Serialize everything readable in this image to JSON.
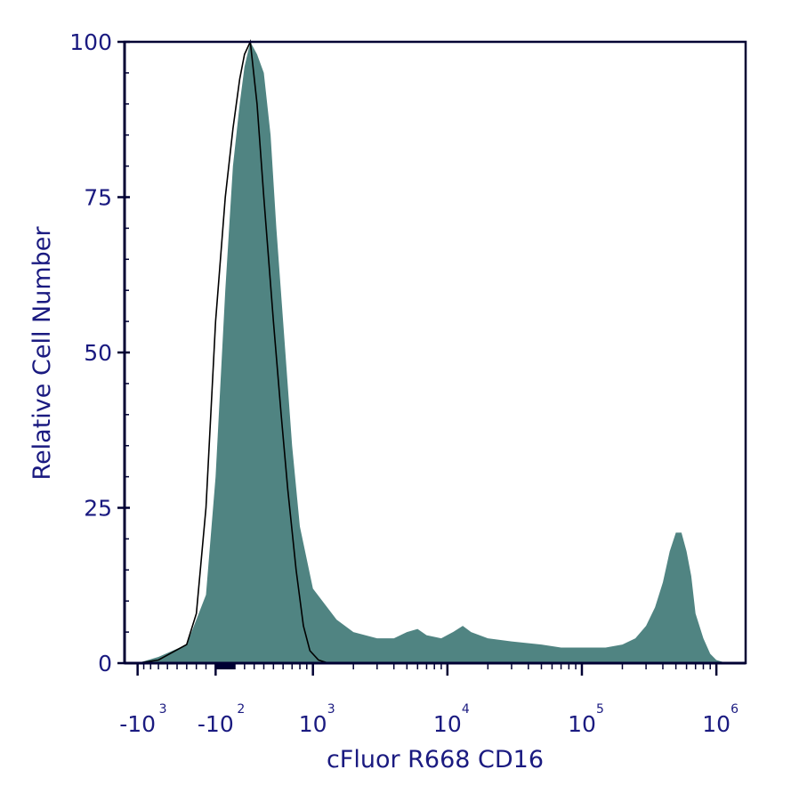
{
  "chart_data": {
    "type": "area",
    "xlabel": "cFluor R668 CD16",
    "ylabel": "Relative Cell Number",
    "ylim": [
      0,
      100
    ],
    "x_scale": "biexponential (logicle)",
    "yticks": [
      "0",
      "25",
      "50",
      "75",
      "100"
    ],
    "xticks": [
      {
        "base": "-10",
        "exp": "3",
        "value": -1000
      },
      {
        "base": "-10",
        "exp": "2",
        "value": -100
      },
      {
        "base": "10",
        "exp": "3",
        "value": 1000
      },
      {
        "base": "10",
        "exp": "4",
        "value": 10000
      },
      {
        "base": "10",
        "exp": "5",
        "value": 100000
      },
      {
        "base": "10",
        "exp": "6",
        "value": 1000000
      }
    ],
    "grid": false,
    "colors": {
      "filled_series": "#508482",
      "outline_series": "#000000",
      "axis": "#000033",
      "text": "#1a1a80"
    },
    "series": [
      {
        "style": "filled",
        "x": [
          -1000,
          -700,
          -400,
          -200,
          -100,
          0,
          80,
          150,
          200,
          260,
          330,
          400,
          470,
          530,
          600,
          700,
          800,
          1000,
          1500,
          2000,
          3000,
          4000,
          5000,
          6000,
          7000,
          9000,
          11000,
          13000,
          15000,
          20000,
          30000,
          50000,
          70000,
          100000,
          150000,
          200000,
          250000,
          300000,
          350000,
          400000,
          450000,
          500000,
          550000,
          600000,
          650000,
          700000,
          800000,
          900000,
          1000000,
          1200000
        ],
        "values": [
          0,
          1,
          3,
          11,
          30,
          60,
          80,
          90,
          96,
          100,
          98,
          95,
          85,
          70,
          55,
          35,
          22,
          12,
          7,
          5,
          4,
          4,
          5,
          5.5,
          4.5,
          4,
          5,
          6,
          5,
          4,
          3.5,
          3,
          2.5,
          2.5,
          2.5,
          3,
          4,
          6,
          9,
          13,
          18,
          21,
          21,
          18,
          14,
          8,
          4,
          1.5,
          0.5,
          0
        ]
      },
      {
        "style": "outline",
        "x": [
          -1000,
          -700,
          -400,
          -300,
          -200,
          -100,
          0,
          80,
          150,
          200,
          260,
          330,
          400,
          500,
          580,
          650,
          750,
          850,
          950,
          1100,
          1300
        ],
        "values": [
          0,
          0.5,
          3,
          8,
          25,
          55,
          75,
          86,
          94,
          98,
          100,
          90,
          75,
          55,
          40,
          28,
          15,
          6,
          2,
          0.5,
          0
        ]
      }
    ]
  }
}
